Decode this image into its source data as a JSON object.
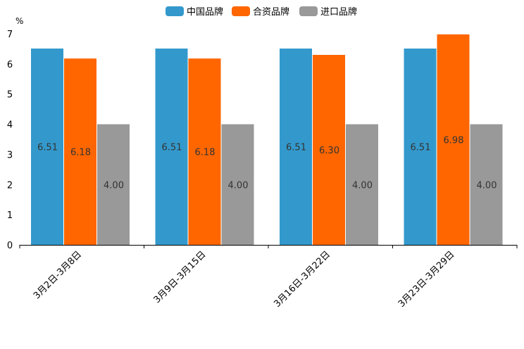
{
  "chart_data": {
    "type": "bar",
    "title": "",
    "xlabel": "",
    "ylabel": "%",
    "ylim": [
      0,
      7
    ],
    "yticks": [
      0,
      1,
      2,
      3,
      4,
      5,
      6,
      7
    ],
    "grid": false,
    "legend_position": "top-center",
    "categories": [
      "3月2日-3月8日",
      "3月9日-3月15日",
      "3月16日-3月22日",
      "3月23日-3月29日"
    ],
    "series": [
      {
        "name": "中国品牌",
        "color": "#3399cc",
        "values": [
          6.51,
          6.51,
          6.51,
          6.51
        ],
        "labels": [
          "6.51",
          "6.51",
          "6.51",
          "6.51"
        ]
      },
      {
        "name": "合资品牌",
        "color": "#ff6600",
        "values": [
          6.18,
          6.18,
          6.3,
          6.98
        ],
        "labels": [
          "6.18",
          "6.18",
          "6.30",
          "6.98"
        ]
      },
      {
        "name": "进口品牌",
        "color": "#999999",
        "values": [
          4.0,
          4.0,
          4.0,
          4.0
        ],
        "labels": [
          "4.00",
          "4.00",
          "4.00",
          "4.00"
        ]
      }
    ]
  }
}
